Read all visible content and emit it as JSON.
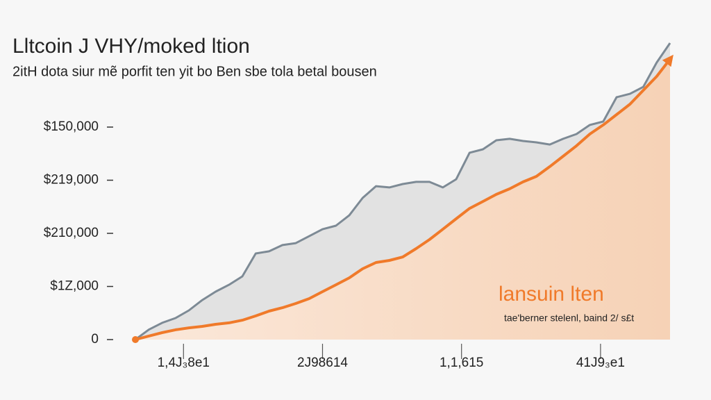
{
  "chart_data": {
    "type": "line",
    "title": "Lltcoin J VHY/moked ltion",
    "subtitle": "2itH dota siur mẽ porfit ten yit bo Ben sbe tola betal bousen",
    "annotation": "lansuin lten",
    "annotation_note": "tae'berner stelenl, baind 2/ s£t",
    "x": [
      0,
      1,
      2,
      3,
      4,
      5,
      6,
      7,
      8,
      9,
      10,
      11,
      12,
      13,
      14,
      15,
      16,
      17,
      18,
      19,
      20,
      21,
      22,
      23,
      24,
      25,
      26,
      27,
      28,
      29,
      30,
      31,
      32,
      33,
      34,
      35,
      36,
      37,
      38,
      39,
      40
    ],
    "xlim": [
      0,
      40
    ],
    "xticks": [
      {
        "value": 3.6,
        "label": "1,4J₃8e1"
      },
      {
        "value": 14,
        "label": "2J98614"
      },
      {
        "value": 24.4,
        "label": "1,1,615"
      },
      {
        "value": 34.8,
        "label": "41J9₃e1"
      }
    ],
    "ylim": [
      0,
      215000
    ],
    "yticks": [
      0,
      {
        "value": 37500,
        "label": "$1Z,000"
      },
      {
        "value": 75000,
        "label": "$210,000"
      },
      {
        "value": 112500,
        "label": "$219,000"
      },
      {
        "value": 150000,
        "label": "$150,000"
      }
    ],
    "series": [
      {
        "color": "#7d8a95",
        "values": [
          0,
          7000,
          11800,
          15200,
          20600,
          27900,
          33800,
          38700,
          44600,
          60800,
          62300,
          66700,
          68100,
          73000,
          77900,
          80400,
          87700,
          100000,
          108300,
          107400,
          109800,
          111300,
          111300,
          107400,
          113200,
          131900,
          134300,
          140700,
          141700,
          140200,
          139200,
          137700,
          141700,
          145100,
          151500,
          153900,
          171100,
          173500,
          178400,
          195600,
          209300
        ]
      },
      {
        "color": "#f07a2a",
        "values": [
          0,
          2500,
          4900,
          6900,
          8300,
          9300,
          10800,
          11800,
          13700,
          16700,
          20100,
          22500,
          25500,
          28900,
          33800,
          38700,
          43600,
          50000,
          54400,
          55900,
          58300,
          64200,
          70600,
          77900,
          85300,
          92600,
          97500,
          102500,
          106400,
          111300,
          115200,
          122100,
          129400,
          136800,
          145100,
          151500,
          158800,
          166200,
          176000,
          185800,
          198000
        ]
      }
    ]
  }
}
